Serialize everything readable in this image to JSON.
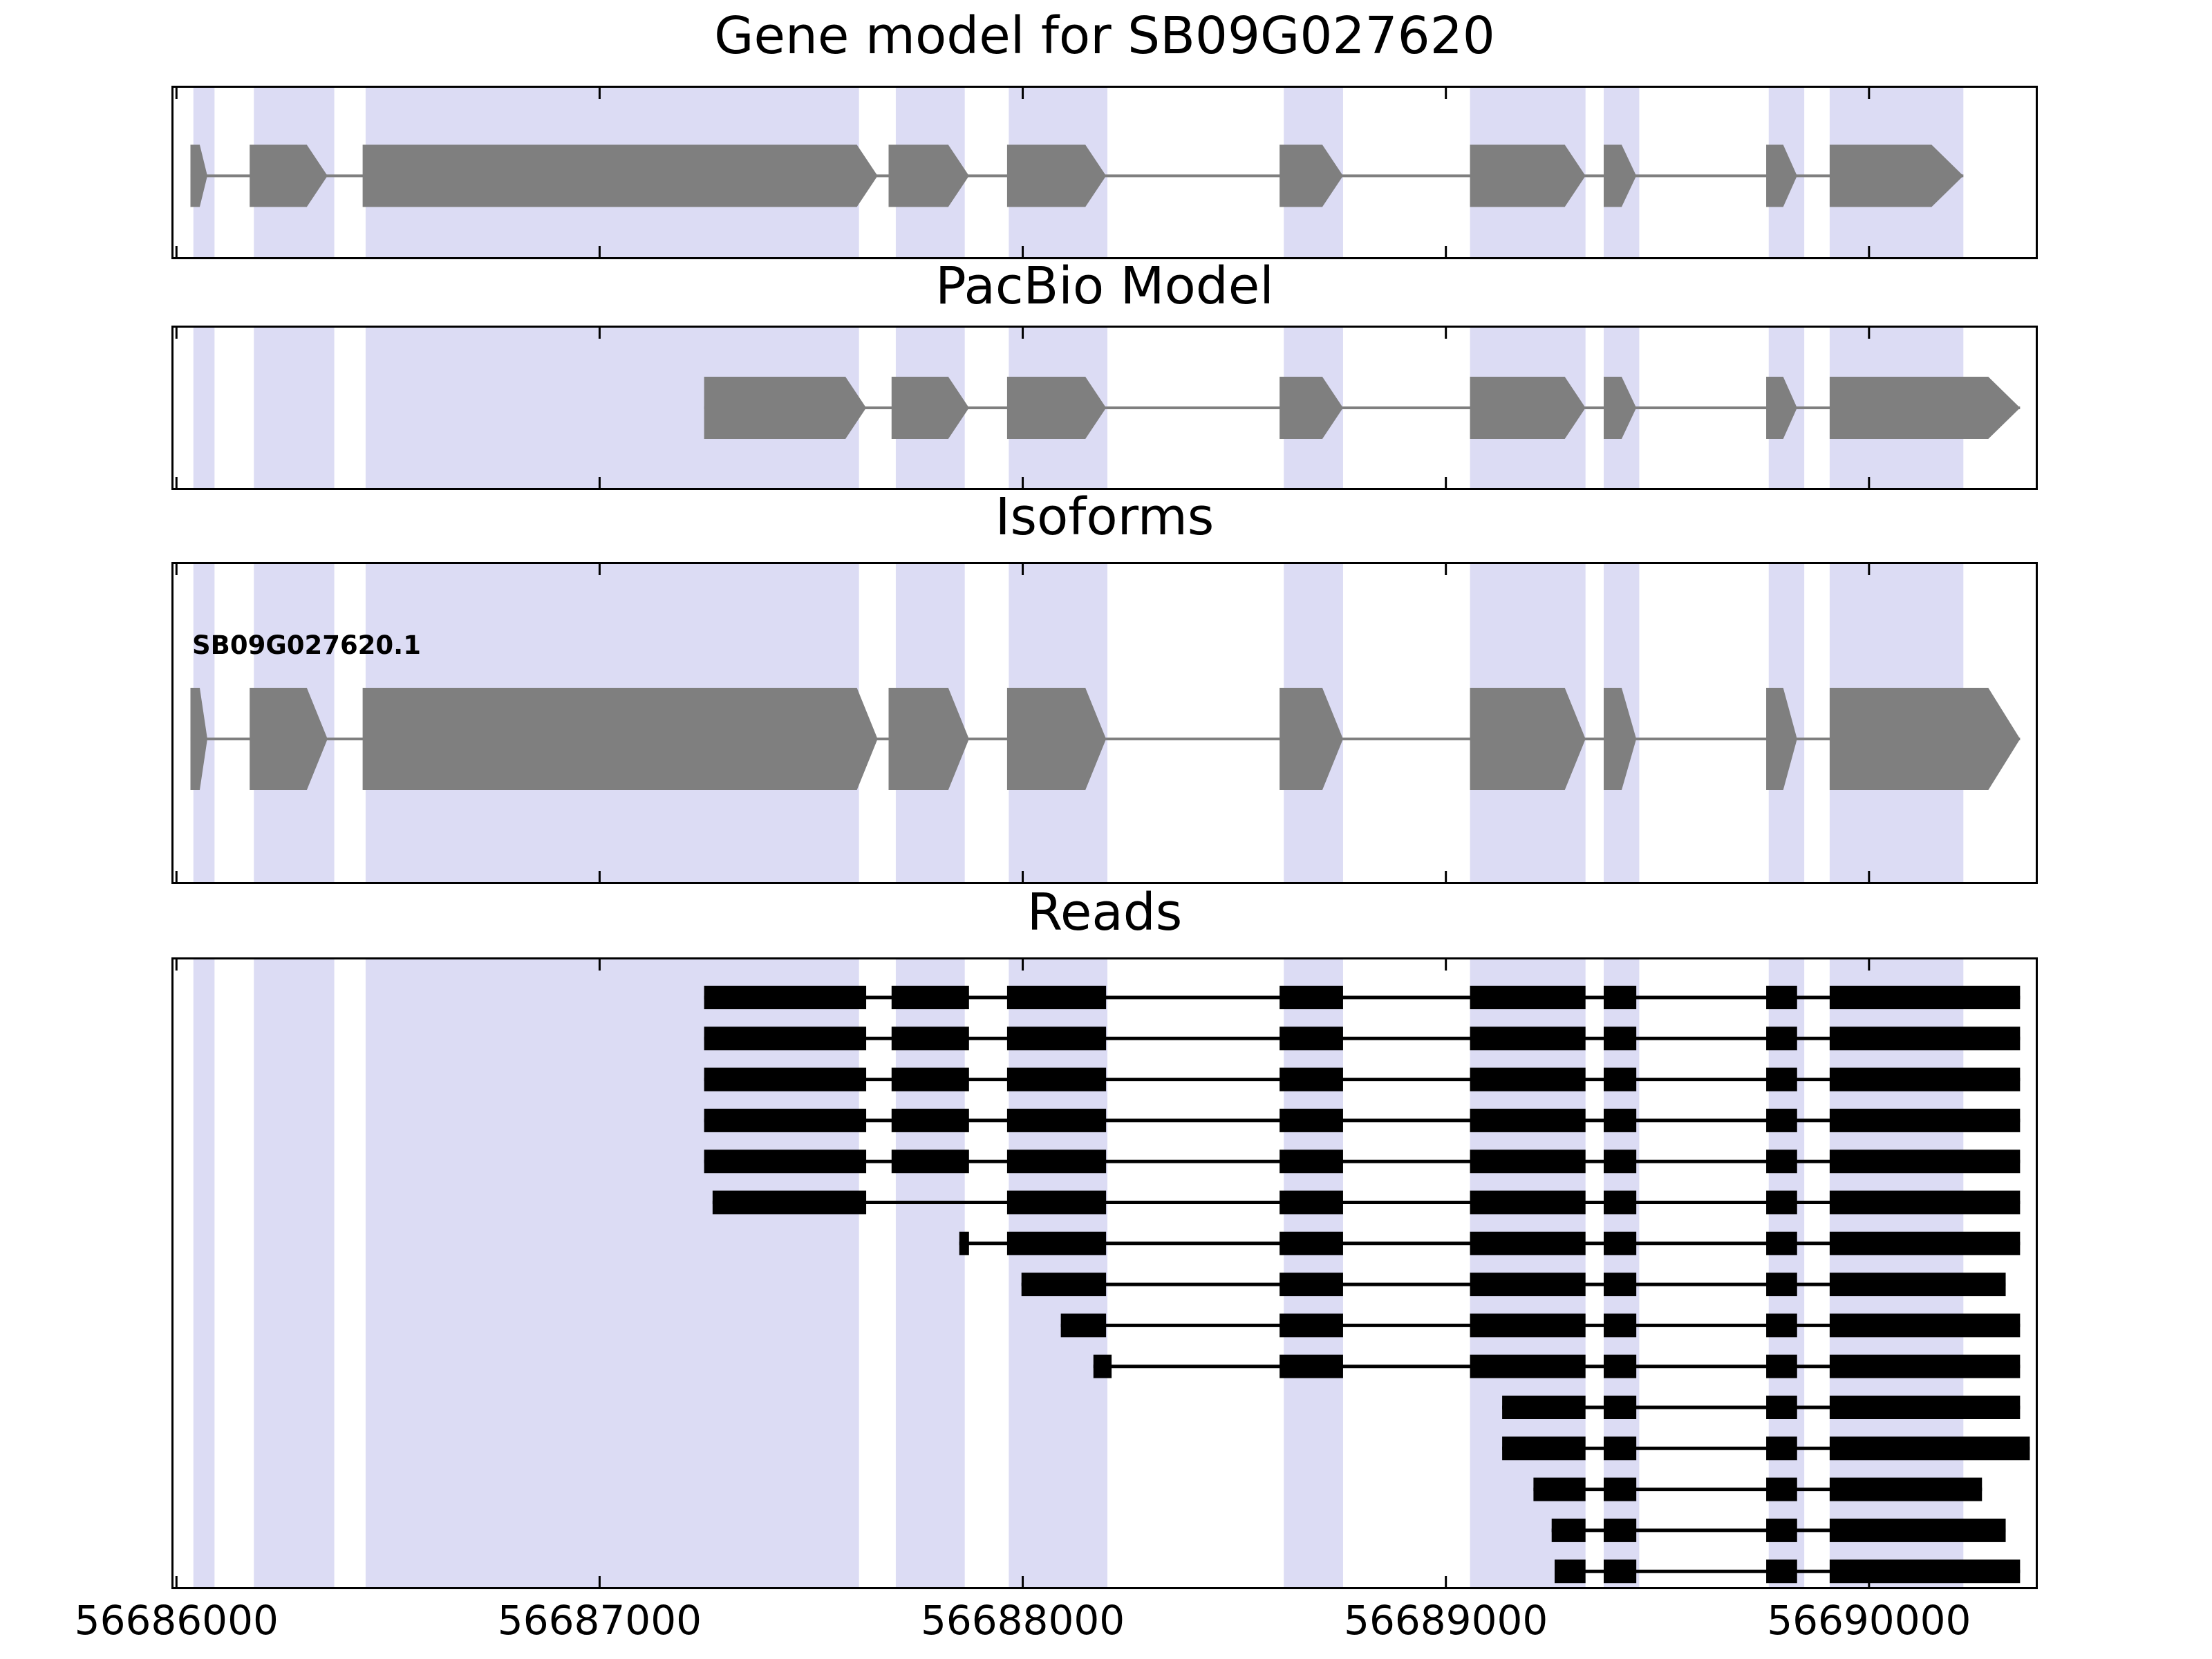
{
  "chart_data": {
    "type": "genome-annotation-tracks",
    "title": "Gene model for SB09G027620",
    "xlabel": "",
    "ylabel": "",
    "legend": "none",
    "grid": false,
    "x_axis": {
      "range": [
        56685993,
        56690394
      ],
      "ticks": [
        56686000,
        56687000,
        56688000,
        56689000,
        56690000
      ],
      "tick_labels": [
        "56686000",
        "56687000",
        "56688000",
        "56689000",
        "56690000"
      ]
    },
    "colors": {
      "exon_fill": "#7f7f7f",
      "highlight_band": "#dcdcf4",
      "read_fill": "#000000",
      "panel_border": "#000000",
      "background": "#ffffff"
    },
    "highlight_regions": [
      [
        56686040,
        56686090
      ],
      [
        56686183,
        56686373
      ],
      [
        56686447,
        56687613
      ],
      [
        56687700,
        56687863
      ],
      [
        56687967,
        56688200
      ],
      [
        56688617,
        56688757
      ],
      [
        56689057,
        56689330
      ],
      [
        56689373,
        56689457
      ],
      [
        56689763,
        56689847
      ],
      [
        56689907,
        56690223
      ]
    ],
    "panels": [
      {
        "name": "gene_model",
        "title": "Gene model for SB09G027620",
        "features": [
          {
            "type": "transcript",
            "exons": [
              [
                56686033,
                56686073
              ],
              [
                56686173,
                56686357
              ],
              [
                56686440,
                56687657
              ],
              [
                56687683,
                56687873
              ],
              [
                56687963,
                56688197
              ],
              [
                56688607,
                56688757
              ],
              [
                56689057,
                56689330
              ],
              [
                56689373,
                56689450
              ],
              [
                56689757,
                56689830
              ],
              [
                56689907,
                56690223
              ]
            ]
          }
        ]
      },
      {
        "name": "pacbio_model",
        "title": "PacBio Model",
        "features": [
          {
            "type": "transcript",
            "exons": [
              [
                56687247,
                56687630
              ],
              [
                56687690,
                56687873
              ],
              [
                56687963,
                56688197
              ],
              [
                56688607,
                56688757
              ],
              [
                56689057,
                56689330
              ],
              [
                56689373,
                56689450
              ],
              [
                56689757,
                56689830
              ],
              [
                56689907,
                56690357
              ]
            ]
          }
        ]
      },
      {
        "name": "isoforms",
        "title": "Isoforms",
        "features": [
          {
            "type": "transcript",
            "label": "SB09G027620.1",
            "exons": [
              [
                56686033,
                56686073
              ],
              [
                56686173,
                56686357
              ],
              [
                56686440,
                56687657
              ],
              [
                56687683,
                56687873
              ],
              [
                56687963,
                56688197
              ],
              [
                56688607,
                56688757
              ],
              [
                56689057,
                56689330
              ],
              [
                56689373,
                56689450
              ],
              [
                56689757,
                56689830
              ],
              [
                56689907,
                56690357
              ]
            ]
          }
        ]
      },
      {
        "name": "reads",
        "title": "Reads",
        "reads": [
          {
            "exons": [
              [
                56687247,
                56687630
              ],
              [
                56687690,
                56687873
              ],
              [
                56687963,
                56688197
              ],
              [
                56688607,
                56688757
              ],
              [
                56689057,
                56689330
              ],
              [
                56689373,
                56689450
              ],
              [
                56689757,
                56689830
              ],
              [
                56689907,
                56690357
              ]
            ]
          },
          {
            "exons": [
              [
                56687247,
                56687630
              ],
              [
                56687690,
                56687873
              ],
              [
                56687963,
                56688197
              ],
              [
                56688607,
                56688757
              ],
              [
                56689057,
                56689330
              ],
              [
                56689373,
                56689450
              ],
              [
                56689757,
                56689830
              ],
              [
                56689907,
                56690357
              ]
            ]
          },
          {
            "exons": [
              [
                56687247,
                56687630
              ],
              [
                56687690,
                56687873
              ],
              [
                56687963,
                56688197
              ],
              [
                56688607,
                56688757
              ],
              [
                56689057,
                56689330
              ],
              [
                56689373,
                56689450
              ],
              [
                56689757,
                56689830
              ],
              [
                56689907,
                56690357
              ]
            ]
          },
          {
            "exons": [
              [
                56687247,
                56687630
              ],
              [
                56687690,
                56687873
              ],
              [
                56687963,
                56688197
              ],
              [
                56688607,
                56688757
              ],
              [
                56689057,
                56689330
              ],
              [
                56689373,
                56689450
              ],
              [
                56689757,
                56689830
              ],
              [
                56689907,
                56690357
              ]
            ]
          },
          {
            "exons": [
              [
                56687247,
                56687630
              ],
              [
                56687690,
                56687873
              ],
              [
                56687963,
                56688197
              ],
              [
                56688607,
                56688757
              ],
              [
                56689057,
                56689330
              ],
              [
                56689373,
                56689450
              ],
              [
                56689757,
                56689830
              ],
              [
                56689907,
                56690357
              ]
            ]
          },
          {
            "exons": [
              [
                56687267,
                56687630
              ],
              [
                56687963,
                56688197
              ],
              [
                56688607,
                56688757
              ],
              [
                56689057,
                56689330
              ],
              [
                56689373,
                56689450
              ],
              [
                56689757,
                56689830
              ],
              [
                56689907,
                56690357
              ]
            ]
          },
          {
            "exons": [
              [
                56687850,
                56687873
              ],
              [
                56687963,
                56688197
              ],
              [
                56688607,
                56688757
              ],
              [
                56689057,
                56689330
              ],
              [
                56689373,
                56689450
              ],
              [
                56689757,
                56689830
              ],
              [
                56689907,
                56690357
              ]
            ]
          },
          {
            "exons": [
              [
                56687997,
                56688197
              ],
              [
                56688607,
                56688757
              ],
              [
                56689057,
                56689330
              ],
              [
                56689373,
                56689450
              ],
              [
                56689757,
                56689830
              ],
              [
                56689907,
                56690323
              ]
            ]
          },
          {
            "exons": [
              [
                56688090,
                56688197
              ],
              [
                56688607,
                56688757
              ],
              [
                56689057,
                56689330
              ],
              [
                56689373,
                56689450
              ],
              [
                56689757,
                56689830
              ],
              [
                56689907,
                56690357
              ]
            ]
          },
          {
            "exons": [
              [
                56688167,
                56688210
              ],
              [
                56688607,
                56688757
              ],
              [
                56689057,
                56689330
              ],
              [
                56689373,
                56689450
              ],
              [
                56689757,
                56689830
              ],
              [
                56689907,
                56690357
              ]
            ]
          },
          {
            "exons": [
              [
                56689133,
                56689330
              ],
              [
                56689373,
                56689450
              ],
              [
                56689757,
                56689830
              ],
              [
                56689907,
                56690357
              ]
            ]
          },
          {
            "exons": [
              [
                56689133,
                56689330
              ],
              [
                56689373,
                56689450
              ],
              [
                56689757,
                56689830
              ],
              [
                56689907,
                56690380
              ]
            ]
          },
          {
            "exons": [
              [
                56689207,
                56689330
              ],
              [
                56689373,
                56689450
              ],
              [
                56689757,
                56689830
              ],
              [
                56689907,
                56690267
              ]
            ]
          },
          {
            "exons": [
              [
                56689250,
                56689330
              ],
              [
                56689373,
                56689450
              ],
              [
                56689757,
                56689830
              ],
              [
                56689907,
                56690323
              ]
            ]
          },
          {
            "exons": [
              [
                56689257,
                56689330
              ],
              [
                56689373,
                56689450
              ],
              [
                56689757,
                56689830
              ],
              [
                56689907,
                56690357
              ]
            ]
          }
        ]
      }
    ]
  }
}
